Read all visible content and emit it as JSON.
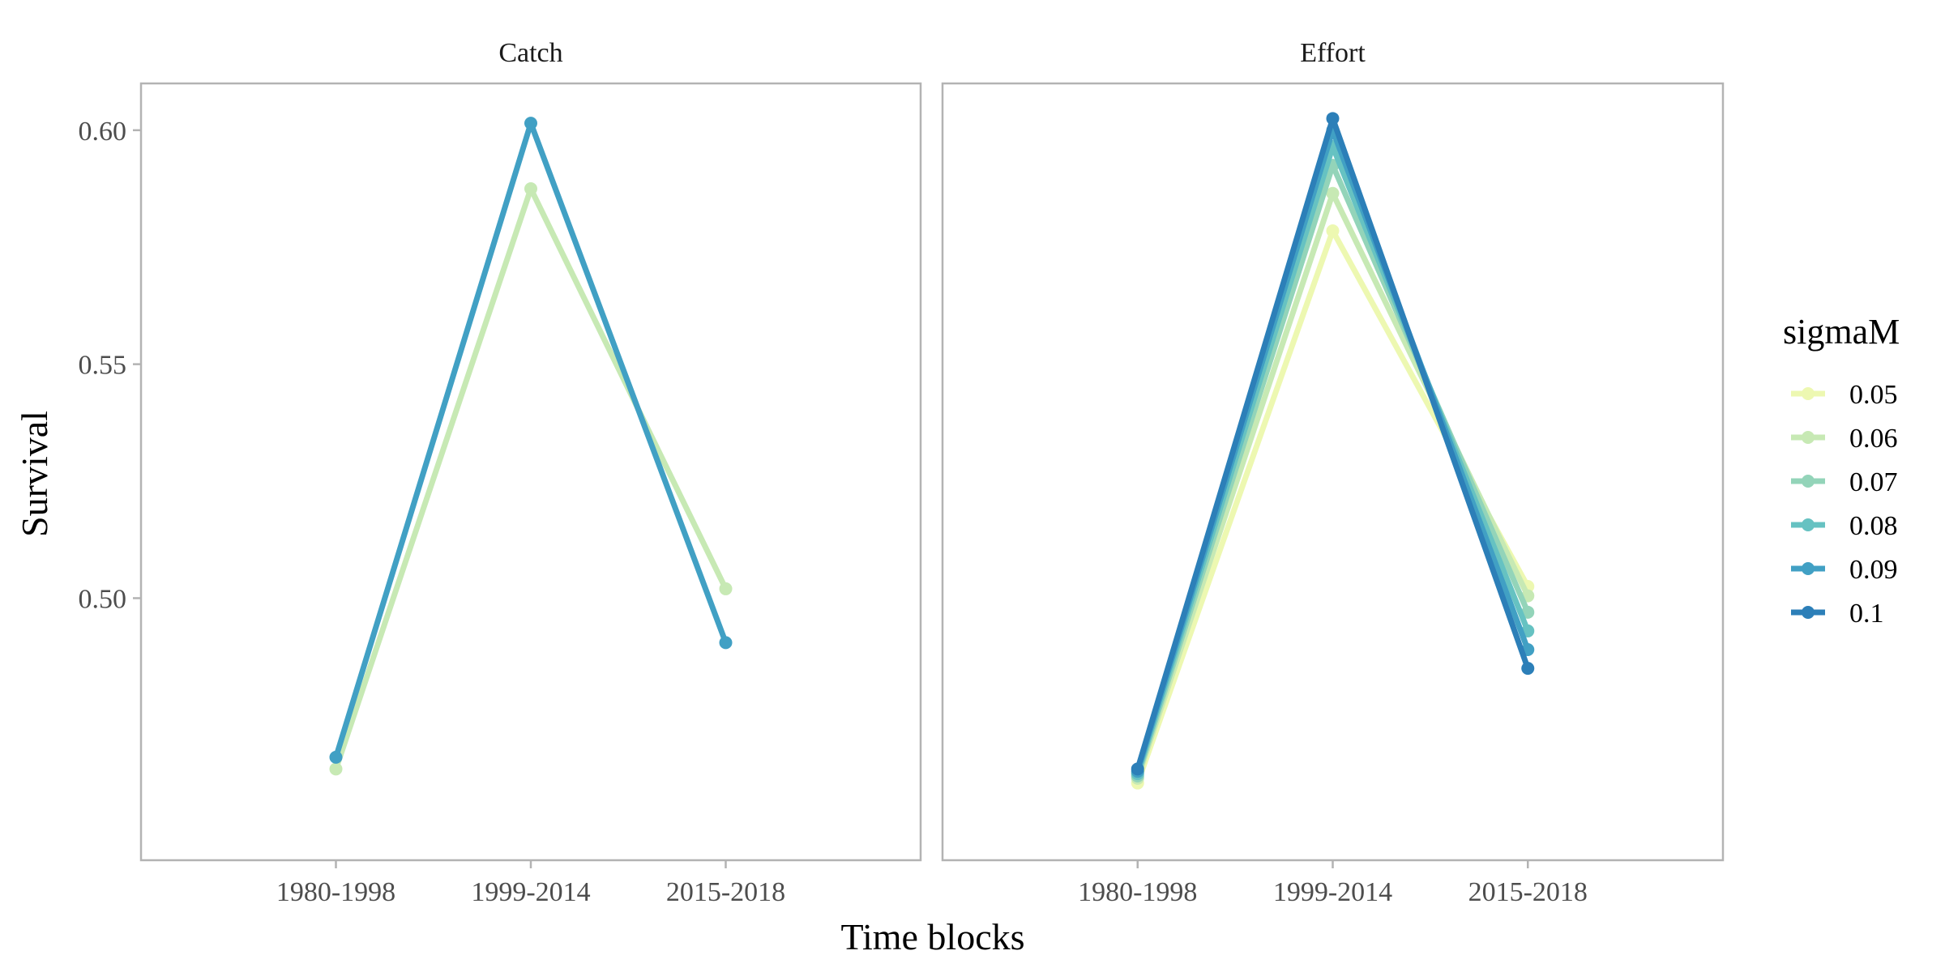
{
  "chart_data": {
    "type": "line",
    "ylabel": "Survival",
    "xlabel": "Time blocks",
    "categories": [
      "1980-1998",
      "1999-2014",
      "2015-2018"
    ],
    "ylim": [
      0.444,
      0.61
    ],
    "yticks": [
      0.5,
      0.55,
      0.6
    ],
    "ytick_labels": [
      "0.50",
      "0.55",
      "0.60"
    ],
    "grid": false,
    "legend": {
      "title": "sigmaM",
      "placement": "right",
      "entries": [
        "0.05",
        "0.06",
        "0.07",
        "0.08",
        "0.09",
        "0.1"
      ],
      "colors": [
        "#edf8b1",
        "#c7e9b4",
        "#93d4b9",
        "#66c2c2",
        "#41a0c4",
        "#2c7fb8"
      ]
    },
    "panels": [
      {
        "title": "Catch",
        "series": [
          {
            "name": "0.06",
            "color": "#c7e9b4",
            "values": [
              0.4635,
              0.5875,
              0.502
            ]
          },
          {
            "name": "0.09",
            "color": "#41a0c4",
            "values": [
              0.466,
              0.6015,
              0.4905
            ]
          }
        ]
      },
      {
        "title": "Effort",
        "series": [
          {
            "name": "0.05",
            "color": "#edf8b1",
            "values": [
              0.4605,
              0.5785,
              0.5025
            ]
          },
          {
            "name": "0.06",
            "color": "#c7e9b4",
            "values": [
              0.4615,
              0.5865,
              0.5005
            ]
          },
          {
            "name": "0.07",
            "color": "#93d4b9",
            "values": [
              0.462,
              0.5925,
              0.497
            ]
          },
          {
            "name": "0.08",
            "color": "#66c2c2",
            "values": [
              0.4625,
              0.5965,
              0.493
            ]
          },
          {
            "name": "0.09",
            "color": "#41a0c4",
            "values": [
              0.463,
              0.6,
              0.489
            ]
          },
          {
            "name": "0.1",
            "color": "#2c7fb8",
            "values": [
              0.4635,
              0.6025,
              0.485
            ]
          }
        ]
      }
    ]
  }
}
